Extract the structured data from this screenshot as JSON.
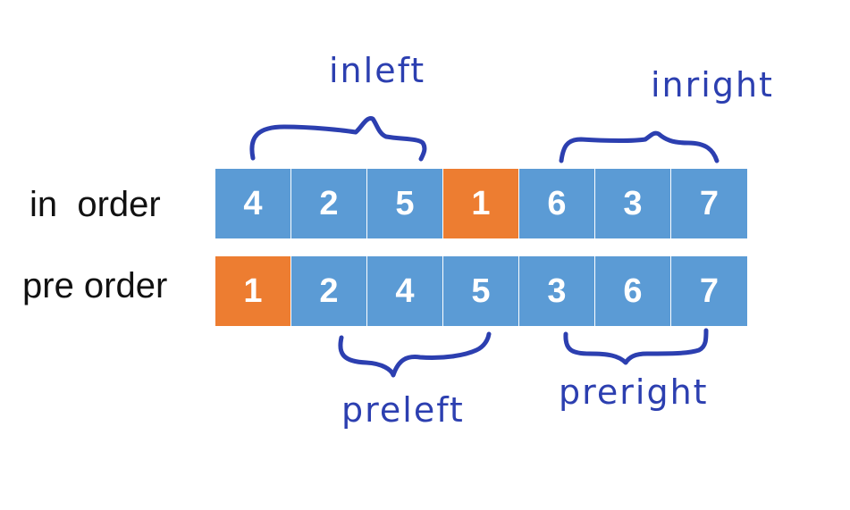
{
  "rows": [
    {
      "label": "in  order",
      "cells": [
        {
          "value": "4",
          "color": "#5b9bd5"
        },
        {
          "value": "2",
          "color": "#5b9bd5"
        },
        {
          "value": "5",
          "color": "#5b9bd5"
        },
        {
          "value": "1",
          "color": "#ed7d31"
        },
        {
          "value": "6",
          "color": "#5b9bd5"
        },
        {
          "value": "3",
          "color": "#5b9bd5"
        },
        {
          "value": "7",
          "color": "#5b9bd5"
        }
      ]
    },
    {
      "label": "pre order",
      "cells": [
        {
          "value": "1",
          "color": "#ed7d31"
        },
        {
          "value": "2",
          "color": "#5b9bd5"
        },
        {
          "value": "4",
          "color": "#5b9bd5"
        },
        {
          "value": "5",
          "color": "#5b9bd5"
        },
        {
          "value": "3",
          "color": "#5b9bd5"
        },
        {
          "value": "6",
          "color": "#5b9bd5"
        },
        {
          "value": "7",
          "color": "#5b9bd5"
        }
      ]
    }
  ],
  "annotations": {
    "inleft": "inleft",
    "inright": "inright",
    "preleft": "preleft",
    "preright": "preright"
  },
  "colors": {
    "cell_default": "#5b9bd5",
    "cell_root": "#ed7d31",
    "handwriting": "#2c3fb0"
  }
}
